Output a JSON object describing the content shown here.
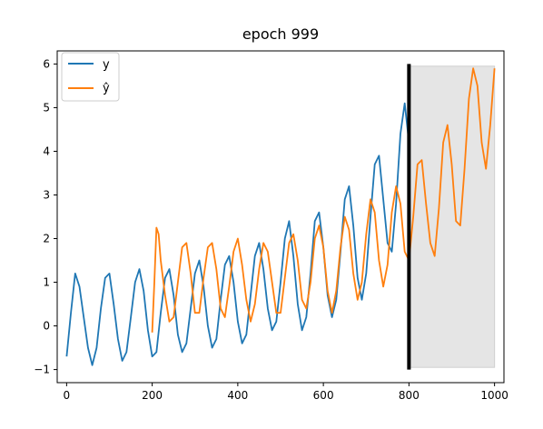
{
  "chart_data": {
    "type": "line",
    "title": "epoch 999",
    "xlabel": "",
    "ylabel": "",
    "xlim": [
      -22,
      1022
    ],
    "ylim": [
      -1.3,
      6.3
    ],
    "x_ticks": [
      0,
      200,
      400,
      600,
      800,
      1000
    ],
    "y_ticks": [
      -1,
      0,
      1,
      2,
      3,
      4,
      5,
      6
    ],
    "x_tick_labels": [
      "0",
      "200",
      "400",
      "600",
      "800",
      "1000"
    ],
    "y_tick_labels": [
      "−1",
      "0",
      "1",
      "2",
      "3",
      "4",
      "5",
      "6"
    ],
    "grid": false,
    "legend": {
      "position": "top-left",
      "entries": [
        "y",
        "ŷ"
      ]
    },
    "series": [
      {
        "name": "y",
        "color": "#1f77b4",
        "x": [
          0,
          10,
          20,
          30,
          40,
          50,
          60,
          70,
          80,
          90,
          100,
          110,
          120,
          130,
          140,
          150,
          160,
          170,
          180,
          190,
          200,
          210,
          220,
          230,
          240,
          250,
          260,
          270,
          280,
          290,
          300,
          310,
          320,
          330,
          340,
          350,
          360,
          370,
          380,
          390,
          400,
          410,
          420,
          430,
          440,
          450,
          460,
          470,
          480,
          490,
          500,
          510,
          520,
          530,
          540,
          550,
          560,
          570,
          580,
          590,
          600,
          610,
          620,
          630,
          640,
          650,
          660,
          670,
          680,
          690,
          700,
          710,
          720,
          730,
          740,
          750,
          760,
          770,
          780,
          790,
          800
        ],
        "values": [
          -0.7,
          0.3,
          1.2,
          0.9,
          0.2,
          -0.5,
          -0.9,
          -0.5,
          0.4,
          1.1,
          1.2,
          0.5,
          -0.3,
          -0.8,
          -0.6,
          0.2,
          1.0,
          1.3,
          0.8,
          -0.1,
          -0.7,
          -0.6,
          0.3,
          1.1,
          1.3,
          0.7,
          -0.2,
          -0.6,
          -0.4,
          0.4,
          1.2,
          1.5,
          0.9,
          0.0,
          -0.5,
          -0.3,
          0.6,
          1.4,
          1.6,
          1.0,
          0.1,
          -0.4,
          -0.2,
          0.7,
          1.6,
          1.9,
          1.3,
          0.4,
          -0.1,
          0.1,
          1.0,
          2.0,
          2.4,
          1.6,
          0.5,
          -0.1,
          0.2,
          1.2,
          2.4,
          2.6,
          1.8,
          0.7,
          0.2,
          0.6,
          1.7,
          2.9,
          3.2,
          2.3,
          1.1,
          0.6,
          1.2,
          2.5,
          3.7,
          3.9,
          2.9,
          1.9,
          1.7,
          2.8,
          4.4,
          5.1,
          4.2
        ]
      },
      {
        "name": "ŷ",
        "color": "#ff7f0e",
        "x": [
          200,
          205,
          210,
          215,
          220,
          230,
          240,
          250,
          260,
          270,
          280,
          290,
          300,
          310,
          320,
          330,
          340,
          350,
          360,
          370,
          380,
          390,
          400,
          410,
          420,
          430,
          440,
          450,
          460,
          470,
          480,
          490,
          500,
          510,
          520,
          530,
          540,
          550,
          560,
          570,
          580,
          590,
          600,
          610,
          620,
          630,
          640,
          650,
          660,
          670,
          680,
          690,
          700,
          710,
          720,
          730,
          740,
          750,
          760,
          770,
          780,
          790,
          800,
          810,
          820,
          830,
          840,
          850,
          860,
          870,
          880,
          890,
          900,
          910,
          920,
          930,
          940,
          950,
          960,
          970,
          980,
          990,
          1000
        ],
        "values": [
          -0.15,
          1.0,
          2.25,
          2.1,
          1.5,
          0.7,
          0.1,
          0.2,
          1.0,
          1.8,
          1.9,
          1.2,
          0.3,
          0.3,
          1.1,
          1.8,
          1.9,
          1.3,
          0.4,
          0.2,
          0.9,
          1.7,
          2.0,
          1.4,
          0.6,
          0.1,
          0.5,
          1.3,
          1.9,
          1.7,
          1.0,
          0.3,
          0.3,
          1.1,
          1.9,
          2.1,
          1.5,
          0.6,
          0.4,
          1.0,
          2.0,
          2.3,
          1.8,
          0.8,
          0.3,
          0.8,
          1.8,
          2.5,
          2.2,
          1.2,
          0.6,
          1.0,
          2.1,
          2.9,
          2.6,
          1.5,
          0.9,
          1.4,
          2.6,
          3.2,
          2.8,
          1.7,
          1.5,
          2.5,
          3.7,
          3.8,
          2.8,
          1.9,
          1.6,
          2.7,
          4.2,
          4.6,
          3.7,
          2.4,
          2.3,
          3.6,
          5.2,
          5.9,
          5.5,
          4.2,
          3.6,
          4.6,
          5.9
        ]
      }
    ],
    "annotations": [
      {
        "type": "vline",
        "x": 800,
        "y0": -1.0,
        "y1": 6.0,
        "color": "#000000"
      },
      {
        "type": "shaded-region",
        "x0": 800,
        "x1": 1000,
        "y0": -0.95,
        "y1": 5.95,
        "color": "#e5e5e5"
      }
    ]
  }
}
